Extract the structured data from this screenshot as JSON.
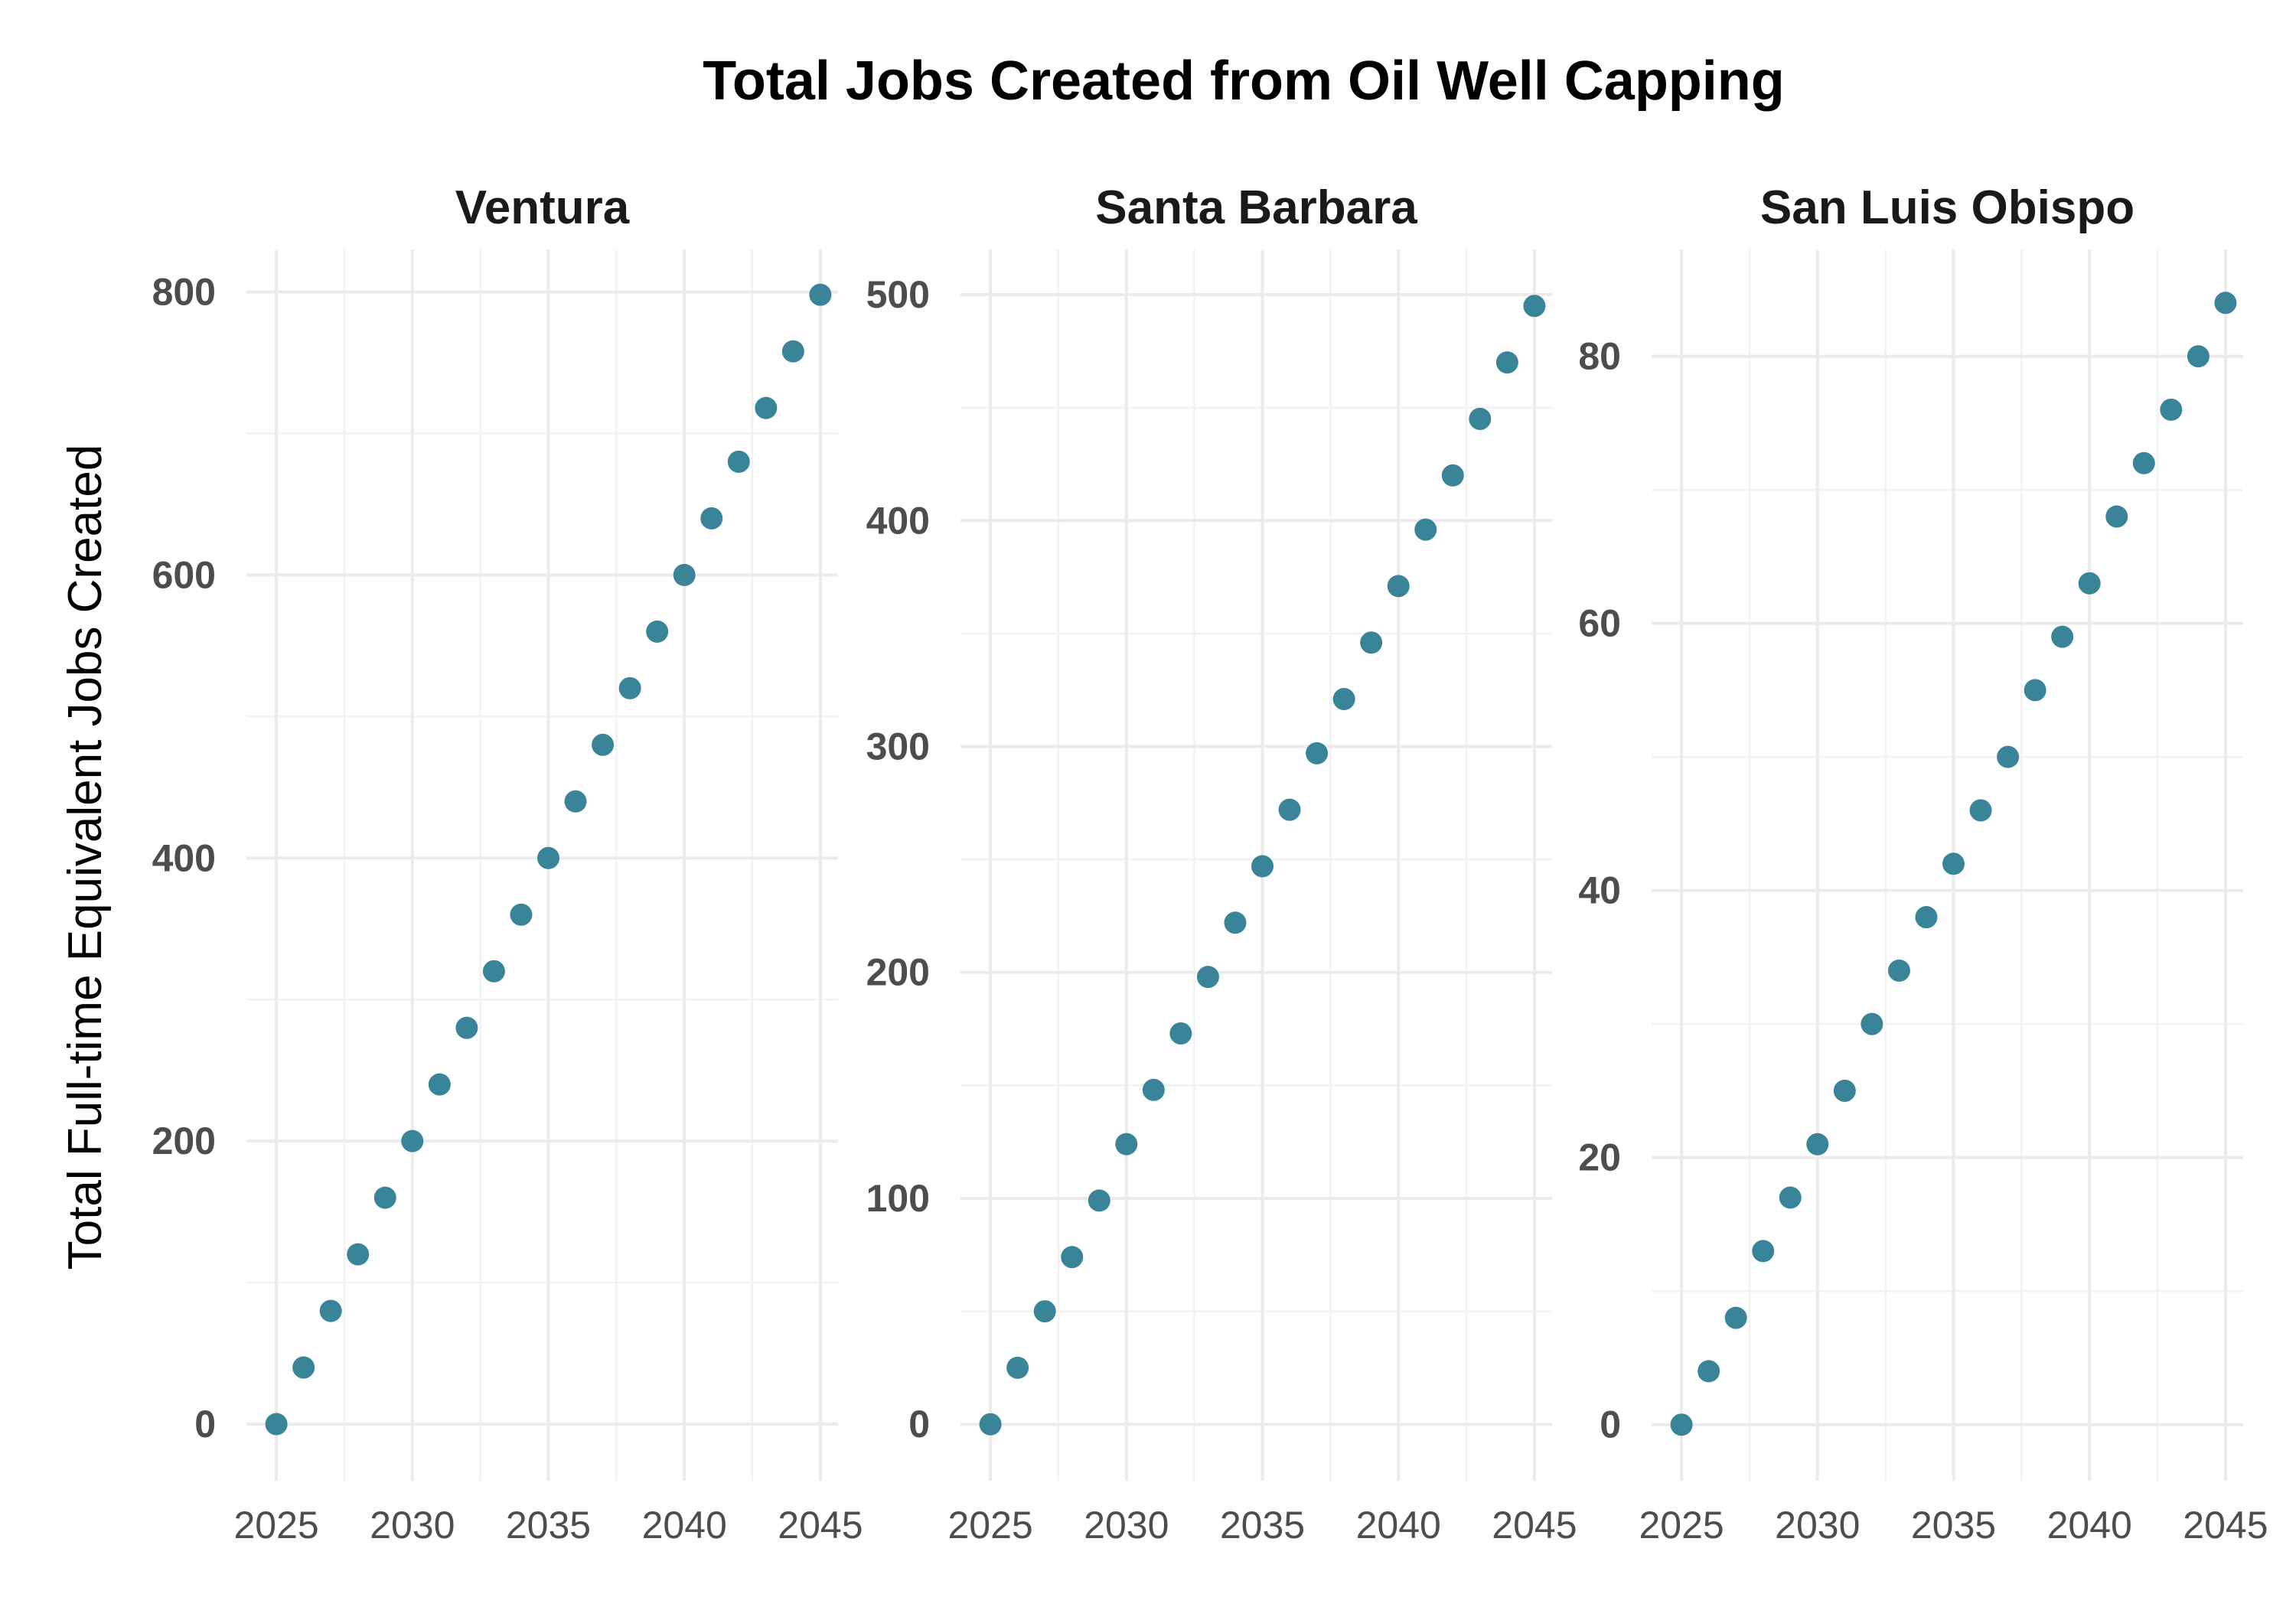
{
  "chart_data": {
    "type": "scatter",
    "title": "Total Jobs Created from Oil Well Capping",
    "ylabel": "Total Full-time Equivalent Jobs Created",
    "xlabel": "",
    "point_color": "#3a8499",
    "x_ticks": [
      2025,
      2030,
      2035,
      2040,
      2045
    ],
    "x_range": [
      2025,
      2045
    ],
    "grid": true,
    "legend": "none",
    "panels": [
      {
        "name": "Ventura",
        "ylim": [
          -40,
          830
        ],
        "y_ticks": [
          0,
          200,
          400,
          600,
          800
        ],
        "x": [
          2025,
          2026,
          2027,
          2028,
          2029,
          2030,
          2031,
          2032,
          2033,
          2034,
          2035,
          2036,
          2037,
          2038,
          2039,
          2040,
          2041,
          2042,
          2043,
          2044,
          2045
        ],
        "y": [
          0,
          40,
          80,
          120,
          160,
          200,
          240,
          280,
          320,
          360,
          400,
          440,
          480,
          520,
          560,
          600,
          640,
          680,
          718,
          758,
          798
        ]
      },
      {
        "name": "Santa Barbara",
        "ylim": [
          -25,
          520
        ],
        "y_ticks": [
          0,
          100,
          200,
          300,
          400,
          500
        ],
        "x": [
          2025,
          2026,
          2027,
          2028,
          2029,
          2030,
          2031,
          2032,
          2033,
          2034,
          2035,
          2036,
          2037,
          2038,
          2039,
          2040,
          2041,
          2042,
          2043,
          2044,
          2045
        ],
        "y": [
          0,
          25,
          50,
          74,
          99,
          124,
          148,
          173,
          198,
          222,
          247,
          272,
          297,
          321,
          346,
          371,
          396,
          420,
          445,
          470,
          495
        ]
      },
      {
        "name": "San Luis Obispo",
        "ylim": [
          -4.2,
          88
        ],
        "y_ticks": [
          0,
          20,
          40,
          60,
          80
        ],
        "x": [
          2025,
          2026,
          2027,
          2028,
          2029,
          2030,
          2031,
          2032,
          2033,
          2034,
          2035,
          2036,
          2037,
          2038,
          2039,
          2040,
          2041,
          2042,
          2043,
          2044,
          2045
        ],
        "y": [
          0,
          4,
          8,
          13,
          17,
          21,
          25,
          30,
          34,
          38,
          42,
          46,
          50,
          55,
          59,
          63,
          68,
          72,
          76,
          80,
          84
        ]
      }
    ]
  }
}
